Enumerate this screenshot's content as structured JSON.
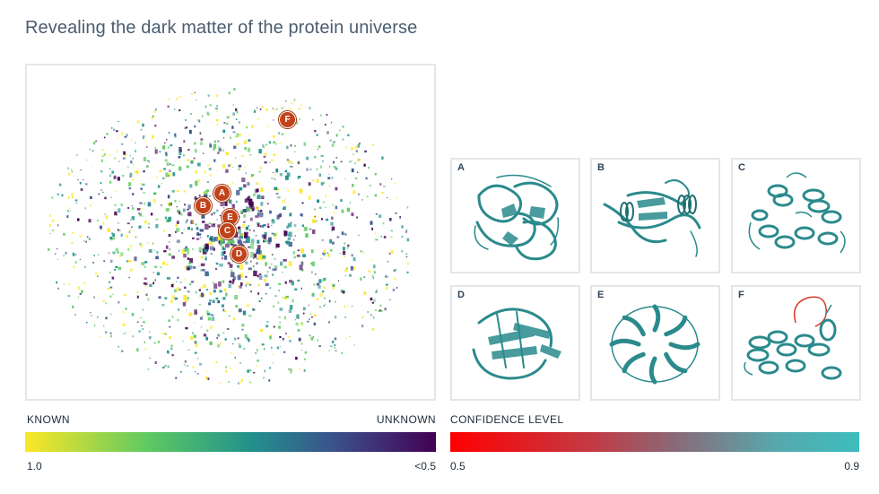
{
  "title": "Revealing the dark matter of the protein universe",
  "map": {
    "markers": [
      "A",
      "B",
      "E",
      "C",
      "D",
      "F"
    ]
  },
  "structures": [
    {
      "label": "A",
      "shape": "beta-propeller-fold"
    },
    {
      "label": "B",
      "shape": "alpha-beta-fold"
    },
    {
      "label": "C",
      "shape": "helical-bundle-fold"
    },
    {
      "label": "D",
      "shape": "beta-sandwich-fold"
    },
    {
      "label": "E",
      "shape": "ring-repeat-fold"
    },
    {
      "label": "F",
      "shape": "helical-fold-low-confidence-loop"
    }
  ],
  "legend_known": {
    "left_label": "KNOWN",
    "right_label": "UNKNOWN",
    "min_tick": "1.0",
    "max_tick": "<0.5",
    "colors": [
      "#fde725",
      "#5ec962",
      "#21918c",
      "#3b528b",
      "#440154"
    ]
  },
  "legend_confidence": {
    "label": "CONFIDENCE LEVEL",
    "min_tick": "0.5",
    "max_tick": "0.9",
    "colors": [
      "#ff0000",
      "#c23b45",
      "#8a6a78",
      "#56a9ad",
      "#3dbdbd"
    ]
  },
  "protein_color": "#2a8a8c",
  "marker_color": "#c0431a"
}
